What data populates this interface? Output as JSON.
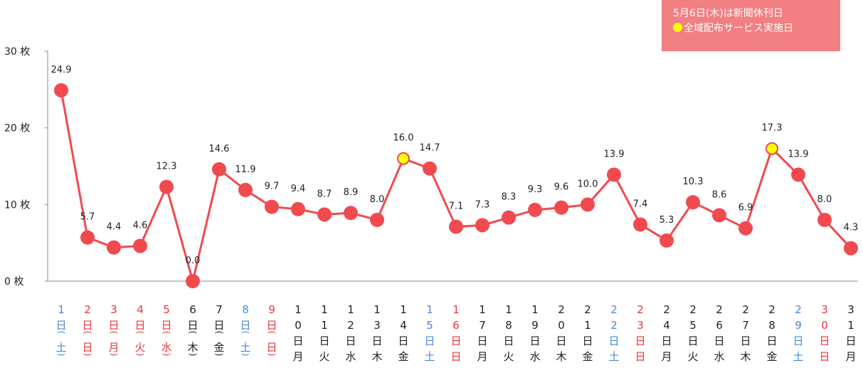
{
  "colors": {
    "line": "#f04a4f",
    "point": "#f04a4f",
    "highlight_point": "#ffff00",
    "highlight_stroke": "#f04a4f",
    "axis": "#888888",
    "weekday_text": "#222222",
    "saturday_text": "#4a8ad4",
    "holiday_text": "#e8363c",
    "legend_bg": "#f27f81"
  },
  "legend": {
    "line1": "5月6日(木)は新聞休刊日",
    "line2": "全域配布サービス実施日"
  },
  "chart_data": {
    "type": "line",
    "unit": "枚",
    "ylim": [
      0,
      30
    ],
    "yticks": [
      {
        "value": 0,
        "label": "0 枚"
      },
      {
        "value": 10,
        "label": "10 枚"
      },
      {
        "value": 20,
        "label": "20 枚"
      },
      {
        "value": 30,
        "label": "30 枚"
      }
    ],
    "grid": false,
    "legend_position": "top-right",
    "categories": [
      {
        "num": "1",
        "dow": "土",
        "type": "sat",
        "paren": true
      },
      {
        "num": "2",
        "dow": "日",
        "type": "hol",
        "paren": true
      },
      {
        "num": "3",
        "dow": "月",
        "type": "hol",
        "paren": true
      },
      {
        "num": "4",
        "dow": "火",
        "type": "hol",
        "paren": true
      },
      {
        "num": "5",
        "dow": "水",
        "type": "hol",
        "paren": true
      },
      {
        "num": "6",
        "dow": "木",
        "type": "wk",
        "paren": true
      },
      {
        "num": "7",
        "dow": "金",
        "type": "wk",
        "paren": true
      },
      {
        "num": "8",
        "dow": "土",
        "type": "sat",
        "paren": true
      },
      {
        "num": "9",
        "dow": "日",
        "type": "hol",
        "paren": true
      },
      {
        "num": "10",
        "dow": "月",
        "type": "wk",
        "paren": false
      },
      {
        "num": "11",
        "dow": "火",
        "type": "wk",
        "paren": false
      },
      {
        "num": "12",
        "dow": "水",
        "type": "wk",
        "paren": false
      },
      {
        "num": "13",
        "dow": "木",
        "type": "wk",
        "paren": false
      },
      {
        "num": "14",
        "dow": "金",
        "type": "wk",
        "paren": false
      },
      {
        "num": "15",
        "dow": "土",
        "type": "sat",
        "paren": false
      },
      {
        "num": "16",
        "dow": "日",
        "type": "hol",
        "paren": false
      },
      {
        "num": "17",
        "dow": "月",
        "type": "wk",
        "paren": false
      },
      {
        "num": "18",
        "dow": "火",
        "type": "wk",
        "paren": false
      },
      {
        "num": "19",
        "dow": "水",
        "type": "wk",
        "paren": false
      },
      {
        "num": "20",
        "dow": "木",
        "type": "wk",
        "paren": false
      },
      {
        "num": "21",
        "dow": "金",
        "type": "wk",
        "paren": false
      },
      {
        "num": "22",
        "dow": "土",
        "type": "sat",
        "paren": false
      },
      {
        "num": "23",
        "dow": "日",
        "type": "hol",
        "paren": false
      },
      {
        "num": "24",
        "dow": "月",
        "type": "wk",
        "paren": false
      },
      {
        "num": "25",
        "dow": "火",
        "type": "wk",
        "paren": false
      },
      {
        "num": "26",
        "dow": "水",
        "type": "wk",
        "paren": false
      },
      {
        "num": "27",
        "dow": "木",
        "type": "wk",
        "paren": false
      },
      {
        "num": "28",
        "dow": "金",
        "type": "wk",
        "paren": false
      },
      {
        "num": "29",
        "dow": "土",
        "type": "sat",
        "paren": false
      },
      {
        "num": "30",
        "dow": "日",
        "type": "hol",
        "paren": false
      },
      {
        "num": "31",
        "dow": "月",
        "type": "wk",
        "paren": false
      }
    ],
    "values": [
      24.9,
      5.7,
      4.4,
      4.6,
      12.3,
      0.0,
      14.6,
      11.9,
      9.7,
      9.4,
      8.7,
      8.9,
      8.0,
      16.0,
      14.7,
      7.1,
      7.3,
      8.3,
      9.3,
      9.6,
      10.0,
      13.9,
      7.4,
      5.3,
      10.3,
      8.6,
      6.9,
      17.3,
      13.9,
      8.0,
      4.3
    ],
    "value_labels": [
      "24.9",
      "5.7",
      "4.4",
      "4.6",
      "12.3",
      "0.0",
      "14.6",
      "11.9",
      "9.7",
      "9.4",
      "8.7",
      "8.9",
      "8.0",
      "16.0",
      "14.7",
      "7.1",
      "7.3",
      "8.3",
      "9.3",
      "9.6",
      "10.0",
      "13.9",
      "7.4",
      "5.3",
      "10.3",
      "8.6",
      "6.9",
      "17.3",
      "13.9",
      "8.0",
      "4.3"
    ],
    "highlight": [
      false,
      false,
      false,
      false,
      false,
      false,
      false,
      false,
      false,
      false,
      false,
      false,
      false,
      true,
      false,
      false,
      false,
      false,
      false,
      false,
      false,
      false,
      false,
      false,
      false,
      false,
      false,
      true,
      false,
      false,
      false
    ]
  }
}
